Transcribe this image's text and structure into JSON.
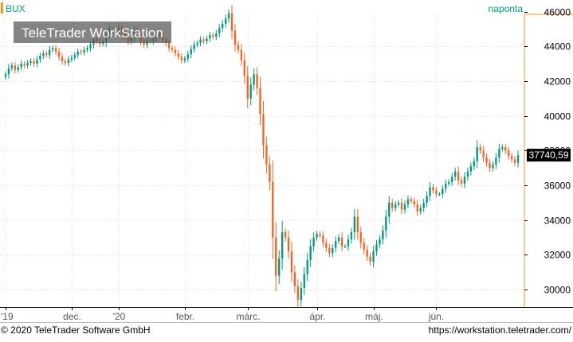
{
  "instrument": "BUX",
  "interval_label": "naponta",
  "watermark": "TeleTrader WorkStation",
  "footer": {
    "copyright": "© 2020 TeleTrader Software GmbH",
    "url": "https://workstation.teletrader.com/"
  },
  "colors": {
    "up": "#009b7d",
    "down": "#f26522",
    "accent": "#f7941d",
    "label_text": "#009b7d",
    "grid": "#dddddd",
    "axis": "#000000",
    "price_tag_bg": "#000000",
    "price_tag_text": "#ffffff",
    "watermark_bg": "#555555"
  },
  "chart_data": {
    "type": "candlestick",
    "title": "BUX",
    "ylim": [
      29000,
      45800
    ],
    "yticks": [
      30000,
      32000,
      34000,
      36000,
      38000,
      40000,
      42000,
      44000,
      46000
    ],
    "ytick_labels": [
      "30000",
      "32000",
      "34000",
      "36000",
      "38000",
      "40000",
      "42000",
      "44000",
      "46000"
    ],
    "x_labels": [
      {
        "label": "'19",
        "index": 0
      },
      {
        "label": "dec.",
        "index": 21
      },
      {
        "label": "'20",
        "index": 36
      },
      {
        "label": "febr.",
        "index": 57
      },
      {
        "label": "márc.",
        "index": 77
      },
      {
        "label": "ápr.",
        "index": 99
      },
      {
        "label": "máj.",
        "index": 117
      },
      {
        "label": "jún.",
        "index": 137
      }
    ],
    "last_value": "37740,59",
    "grid": true,
    "closes": [
      42400,
      42750,
      42900,
      42650,
      42800,
      43000,
      42900,
      43050,
      43150,
      43000,
      43250,
      43450,
      43600,
      43500,
      43800,
      43900,
      43700,
      43400,
      43150,
      43050,
      43250,
      43350,
      43500,
      43700,
      43650,
      43800,
      43900,
      44100,
      44400,
      44300,
      44150,
      44250,
      44700,
      45000,
      44900,
      44750,
      45050,
      44850,
      44600,
      44300,
      44500,
      44900,
      44700,
      44300,
      44100,
      44350,
      44300,
      44500,
      44750,
      44600,
      44400,
      44200,
      43900,
      43800,
      43600,
      43400,
      43200,
      43300,
      43550,
      43850,
      44100,
      44200,
      44400,
      44300,
      44450,
      44650,
      44550,
      44750,
      45050,
      45300,
      45600,
      45900,
      44900,
      44100,
      43800,
      43200,
      42300,
      41000,
      41800,
      42400,
      41600,
      40100,
      38300,
      37200,
      36200,
      33000,
      30800,
      31800,
      33300,
      33000,
      32200,
      31000,
      30200,
      29400,
      30100,
      30900,
      31700,
      32500,
      33000,
      33200,
      33100,
      32700,
      32400,
      32100,
      32400,
      32800,
      33000,
      32500,
      32500,
      32900,
      33300,
      34200,
      33300,
      32700,
      32300,
      31900,
      31600,
      32200,
      32600,
      32900,
      33400,
      34200,
      35000,
      34700,
      34900,
      35000,
      34600,
      34900,
      35200,
      35100,
      34900,
      34500,
      34700,
      35000,
      35400,
      35900,
      35700,
      35500,
      35500,
      35800,
      36100,
      36200,
      36500,
      36800,
      36300,
      36100,
      36500,
      36800,
      37100,
      37400,
      38200,
      38000,
      37600,
      37300,
      37000,
      37200,
      37600,
      38100,
      38200,
      38000,
      37700,
      37500,
      37300,
      37740
    ]
  }
}
